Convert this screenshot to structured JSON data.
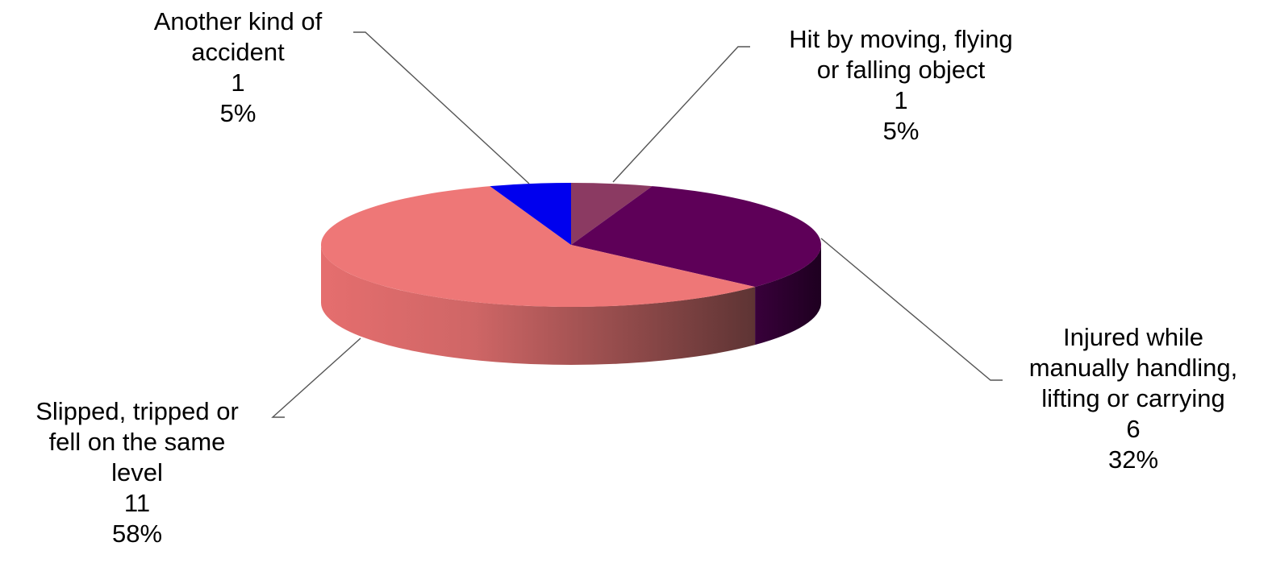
{
  "chart_data": {
    "type": "pie",
    "style": "3d",
    "slices": [
      {
        "label_lines": [
          "Hit by moving,  flying",
          "or falling object"
        ],
        "value": 1,
        "percent": "5%",
        "color": "#8B3A62"
      },
      {
        "label_lines": [
          "Injured while",
          "manually  handling,",
          "lifting or carrying"
        ],
        "value": 6,
        "percent": "32%",
        "color": "#5E0058"
      },
      {
        "label_lines": [
          "Slipped, tripped or",
          "fell on the same",
          "level"
        ],
        "value": 11,
        "percent": "58%",
        "color": "#EE7777"
      },
      {
        "label_lines": [
          "Another kind of",
          "accident"
        ],
        "value": 1,
        "percent": "5%",
        "color": "#0000EE"
      }
    ]
  }
}
